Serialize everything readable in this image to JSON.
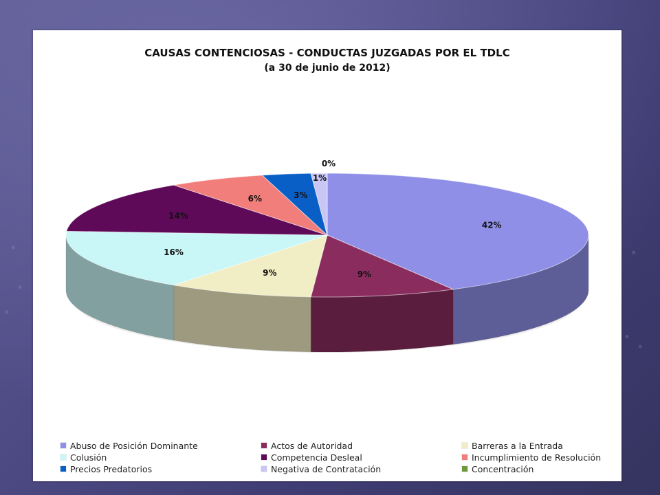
{
  "chart_data": {
    "type": "pie",
    "title": "CAUSAS CONTENCIOSAS - CONDUCTAS JUZGADAS POR EL TDLC",
    "subtitle": "(a 30 de junio de 2012)",
    "categories": [
      "Abuso de Posición Dominante",
      "Actos de Autoridad",
      "Barreras a la Entrada",
      "Colusión",
      "Competencia Desleal",
      "Incumplimiento de Resolución",
      "Precios Predatorios",
      "Negativa de Contratación",
      "Concentración"
    ],
    "values": [
      42,
      9,
      9,
      16,
      14,
      6,
      3,
      1,
      0
    ],
    "value_labels": [
      "42%",
      "9%",
      "9%",
      "16%",
      "14%",
      "6%",
      "3%",
      "1%",
      "0%"
    ],
    "colors": [
      "#8F8FE8",
      "#8A2D5E",
      "#F1EDC4",
      "#C9F6F6",
      "#5E0A59",
      "#F17E7A",
      "#0A5FC7",
      "#C9C6F6",
      "#6F9A3B"
    ],
    "legend_position": "bottom"
  }
}
